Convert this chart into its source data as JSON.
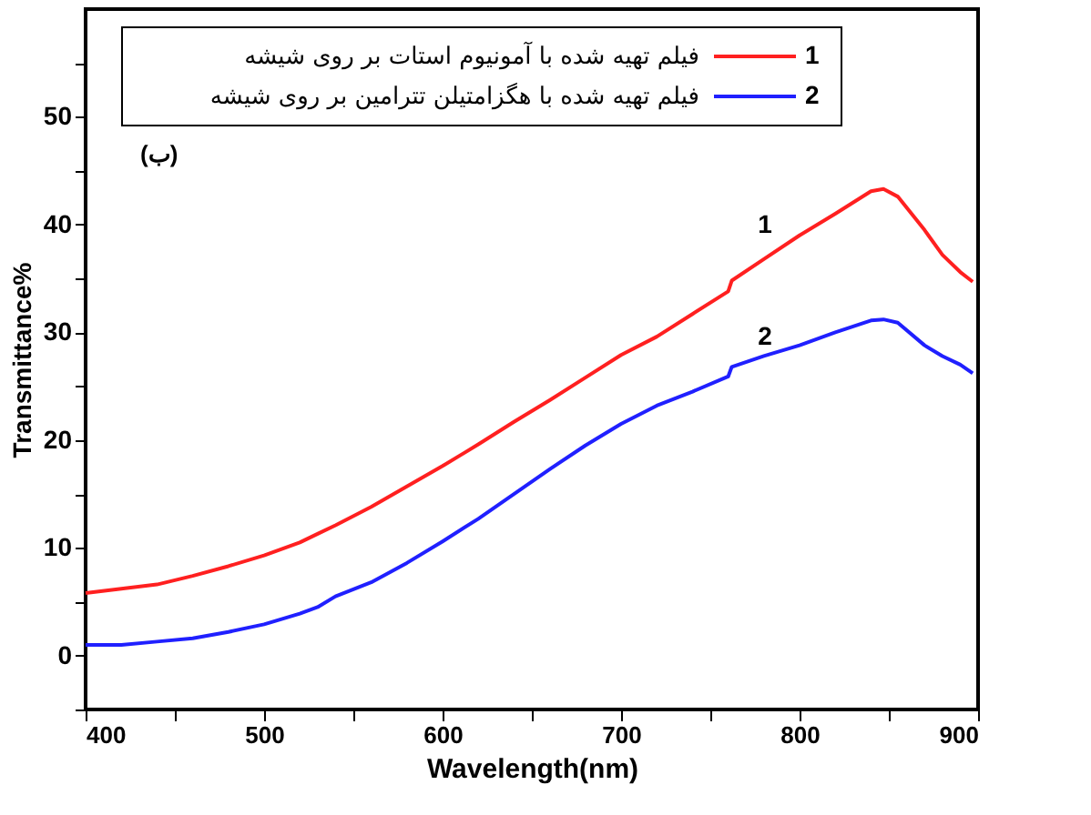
{
  "chart_data": {
    "type": "line",
    "xlabel": "Wavelength(nm)",
    "ylabel": "Transmittance%",
    "x": [
      400,
      420,
      440,
      460,
      480,
      500,
      520,
      530,
      540,
      560,
      580,
      600,
      620,
      640,
      660,
      680,
      700,
      720,
      740,
      760,
      762,
      780,
      800,
      820,
      840,
      847,
      855,
      870,
      880,
      890,
      897
    ],
    "series": [
      {
        "name": "فیلم تهیه شده با آمونیوم استات بر روی شیشه",
        "color": "#ff2020",
        "values": [
          5.8,
          6.2,
          6.6,
          7.4,
          8.3,
          9.3,
          10.5,
          11.3,
          12.1,
          13.8,
          15.7,
          17.6,
          19.6,
          21.7,
          23.7,
          25.8,
          27.9,
          29.6,
          31.7,
          33.8,
          34.8,
          36.8,
          39.0,
          41.0,
          43.1,
          43.3,
          42.6,
          39.5,
          37.2,
          35.6,
          34.7
        ]
      },
      {
        "name": "فیلم تهیه شده با هگزامتیلن تترامین بر روی شیشه",
        "color": "#2020ff",
        "values": [
          1.0,
          1.0,
          1.3,
          1.6,
          2.2,
          2.9,
          3.9,
          4.5,
          5.5,
          6.8,
          8.6,
          10.6,
          12.7,
          15.0,
          17.3,
          19.5,
          21.5,
          23.2,
          24.5,
          25.9,
          26.8,
          27.8,
          28.8,
          30.0,
          31.1,
          31.2,
          30.9,
          28.8,
          27.8,
          27.0,
          26.2
        ]
      }
    ],
    "annotations": [
      "1",
      "2",
      "(ب)"
    ],
    "xlim": [
      400,
      900
    ],
    "xticks": [
      400,
      {
        "value": 450,
        "label": null
      },
      500,
      {
        "value": 550,
        "label": null
      },
      600,
      {
        "value": 650,
        "label": null
      },
      700,
      {
        "value": 750,
        "label": null
      },
      800,
      {
        "value": 850,
        "label": null
      },
      900
    ],
    "ylim": [
      -5,
      60
    ],
    "yticks": [
      {
        "value": -5,
        "label": null
      },
      0,
      {
        "value": 5,
        "label": null
      },
      10,
      {
        "value": 15,
        "label": null
      },
      20,
      {
        "value": 25,
        "label": null
      },
      30,
      {
        "value": 35,
        "label": null
      },
      40,
      {
        "value": 45,
        "label": null
      },
      50,
      {
        "value": 55,
        "label": null
      }
    ],
    "grid": false,
    "legend": "top",
    "marker": "none",
    "line_style": "solid"
  }
}
